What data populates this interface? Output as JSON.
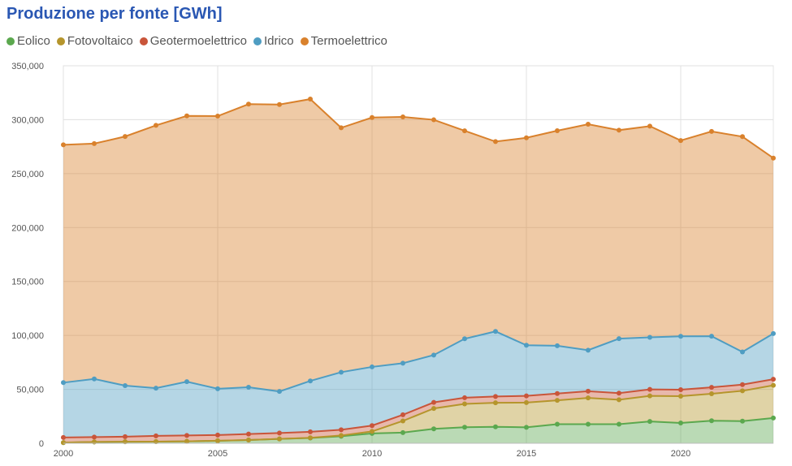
{
  "title": "Produzione per fonte [GWh]",
  "chart_data": {
    "type": "area",
    "stacked": true,
    "title": "Produzione per fonte [GWh]",
    "xlabel": "",
    "ylabel": "",
    "x": [
      2000,
      2001,
      2002,
      2003,
      2004,
      2005,
      2006,
      2007,
      2008,
      2009,
      2010,
      2011,
      2012,
      2013,
      2014,
      2015,
      2016,
      2017,
      2018,
      2019,
      2020,
      2021,
      2022,
      2023
    ],
    "x_ticks": [
      "2000",
      "2005",
      "2010",
      "2015",
      "2020"
    ],
    "y_ticks": [
      "0",
      "50,000",
      "100,000",
      "150,000",
      "200,000",
      "250,000",
      "300,000",
      "350,000"
    ],
    "ylim": [
      0,
      350000
    ],
    "grid": true,
    "legend_position": "top-left",
    "series": [
      {
        "name": "Eolico",
        "color": "#5ba84e",
        "values": [
          600,
          1200,
          1400,
          1500,
          1800,
          2300,
          3000,
          4000,
          4900,
          6500,
          9100,
          9900,
          13400,
          14900,
          15200,
          14800,
          17700,
          17700,
          17700,
          20200,
          18800,
          20900,
          20500,
          23400
        ]
      },
      {
        "name": "Fotovoltaico",
        "color": "#b5952c",
        "values": [
          20,
          20,
          20,
          30,
          30,
          30,
          30,
          40,
          200,
          700,
          1900,
          10800,
          18900,
          21600,
          22300,
          22900,
          22100,
          24400,
          22700,
          23700,
          24900,
          25000,
          28100,
          30300
        ]
      },
      {
        "name": "Geotermoelettrico",
        "color": "#c9553a",
        "values": [
          4700,
          4500,
          4700,
          5300,
          5400,
          5300,
          5500,
          5500,
          5500,
          5300,
          5400,
          5700,
          5600,
          5700,
          5900,
          6200,
          6300,
          6200,
          6100,
          6100,
          6000,
          5900,
          5800,
          5700
        ]
      },
      {
        "name": "Idrico",
        "color": "#4f9dc2",
        "values": [
          50900,
          53900,
          47300,
          44300,
          49900,
          42900,
          43400,
          38500,
          47200,
          53400,
          54400,
          47800,
          43900,
          54700,
          60300,
          47000,
          44300,
          38000,
          50500,
          48200,
          49500,
          47500,
          30300,
          42300
        ]
      },
      {
        "name": "Termoelettrico",
        "color": "#d9812c",
        "values": [
          220500,
          218200,
          231000,
          243600,
          246400,
          252800,
          262500,
          266000,
          261300,
          226600,
          231200,
          228400,
          218100,
          192800,
          176000,
          192300,
          199400,
          209500,
          193300,
          195800,
          181500,
          189800,
          199600,
          162700
        ]
      }
    ]
  }
}
